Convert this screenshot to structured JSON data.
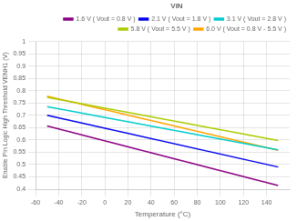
{
  "chart_data": {
    "type": "line",
    "x_label": "Temperature (°C)",
    "y_label": "Enable Pin Logic High Threshold VENH1 (V)",
    "legend_title": "VIN",
    "legend": "upper right",
    "grid": true,
    "x": [
      -50,
      150
    ],
    "xlim": [
      -60,
      160
    ],
    "ylim": [
      0.4,
      1.0
    ],
    "xticks": [
      -60,
      -40,
      -20,
      0,
      20,
      40,
      60,
      80,
      100,
      120,
      140
    ],
    "yticks": [
      0.4,
      0.45,
      0.5,
      0.55,
      0.6,
      0.65,
      0.7,
      0.75,
      0.8,
      0.85,
      0.9,
      0.95,
      1
    ],
    "series": [
      {
        "name": "1.6 V ( Vout = 0.8 V )",
        "color": "#8B0082",
        "values": [
          0.657,
          0.415
        ]
      },
      {
        "name": "2.1 V ( Vout = 1.8 V )",
        "color": "#0000EE",
        "values": [
          0.7,
          0.49
        ]
      },
      {
        "name": "3.1 V ( Vout = 2.8 V )",
        "color": "#00CCCC",
        "values": [
          0.735,
          0.56
        ]
      },
      {
        "name": "5.8 V ( Vout = 5.5 V )",
        "color": "#AACC00",
        "values": [
          0.773,
          0.598
        ]
      },
      {
        "name": "6.0 V ( Vout = 0.8 V - 5.5 V )",
        "color": "#FFA500",
        "values": [
          0.778,
          0.558
        ]
      }
    ]
  }
}
